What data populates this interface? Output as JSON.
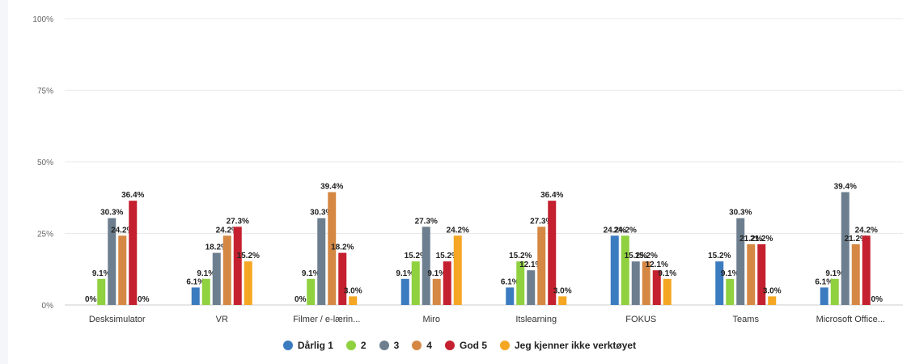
{
  "chart_data": {
    "type": "bar",
    "categories": [
      "Desksimulator",
      "VR",
      "Filmer / e-lærin...",
      "Miro",
      "Itslearning",
      "FOKUS",
      "Teams",
      "Microsoft Office..."
    ],
    "series": [
      {
        "name": "Dårlig 1",
        "color": "#3b7bbf",
        "values": [
          0,
          6.1,
          0,
          9.1,
          6.1,
          24.2,
          15.2,
          6.1
        ],
        "labels": [
          "0%",
          "6.1%",
          "0%",
          "9.1%",
          "6.1%",
          "24.2%",
          "15.2%",
          "6.1%"
        ]
      },
      {
        "name": "2",
        "color": "#8fd13f",
        "values": [
          9.1,
          9.1,
          9.1,
          15.2,
          15.2,
          24.2,
          9.1,
          9.1
        ],
        "labels": [
          "9.1%",
          "9.1%",
          "9.1%",
          "15.2%",
          "15.2%",
          "24.2%",
          "9.1%",
          "9.1%"
        ]
      },
      {
        "name": "3",
        "color": "#6d7f8f",
        "values": [
          30.3,
          18.2,
          30.3,
          27.3,
          12.1,
          15.2,
          30.3,
          39.4
        ],
        "labels": [
          "30.3%",
          "18.2%",
          "30.3%",
          "27.3%",
          "12.1%",
          "15.2%",
          "30.3%",
          "39.4%"
        ]
      },
      {
        "name": "4",
        "color": "#d58843",
        "values": [
          24.2,
          24.2,
          39.4,
          9.1,
          27.3,
          15.2,
          21.2,
          21.2
        ],
        "labels": [
          "24.2%",
          "24.2%",
          "39.4%",
          "9.1%",
          "27.3%",
          "15.2%",
          "21.2%",
          "21.2%"
        ]
      },
      {
        "name": "God 5",
        "color": "#c4202f",
        "values": [
          36.4,
          27.3,
          18.2,
          15.2,
          36.4,
          12.1,
          21.2,
          24.2
        ],
        "labels": [
          "36.4%",
          "27.3%",
          "18.2%",
          "15.2%",
          "36.4%",
          "12.1%",
          "21.2%",
          "24.2%"
        ]
      },
      {
        "name": "Jeg kjenner ikke verktøyet",
        "color": "#f5a623",
        "values": [
          0,
          15.2,
          3.0,
          24.2,
          3.0,
          9.1,
          3.0,
          0
        ],
        "labels": [
          "0%",
          "15.2%",
          "3.0%",
          "24.2%",
          "3.0%",
          "9.1%",
          "3.0%",
          "0%"
        ]
      }
    ],
    "ylim": [
      0,
      100
    ],
    "yticks": [
      "0%",
      "25%",
      "50%",
      "75%",
      "100%"
    ],
    "title": "",
    "xlabel": "",
    "ylabel": "",
    "grid": true,
    "legend_position": "bottom"
  }
}
